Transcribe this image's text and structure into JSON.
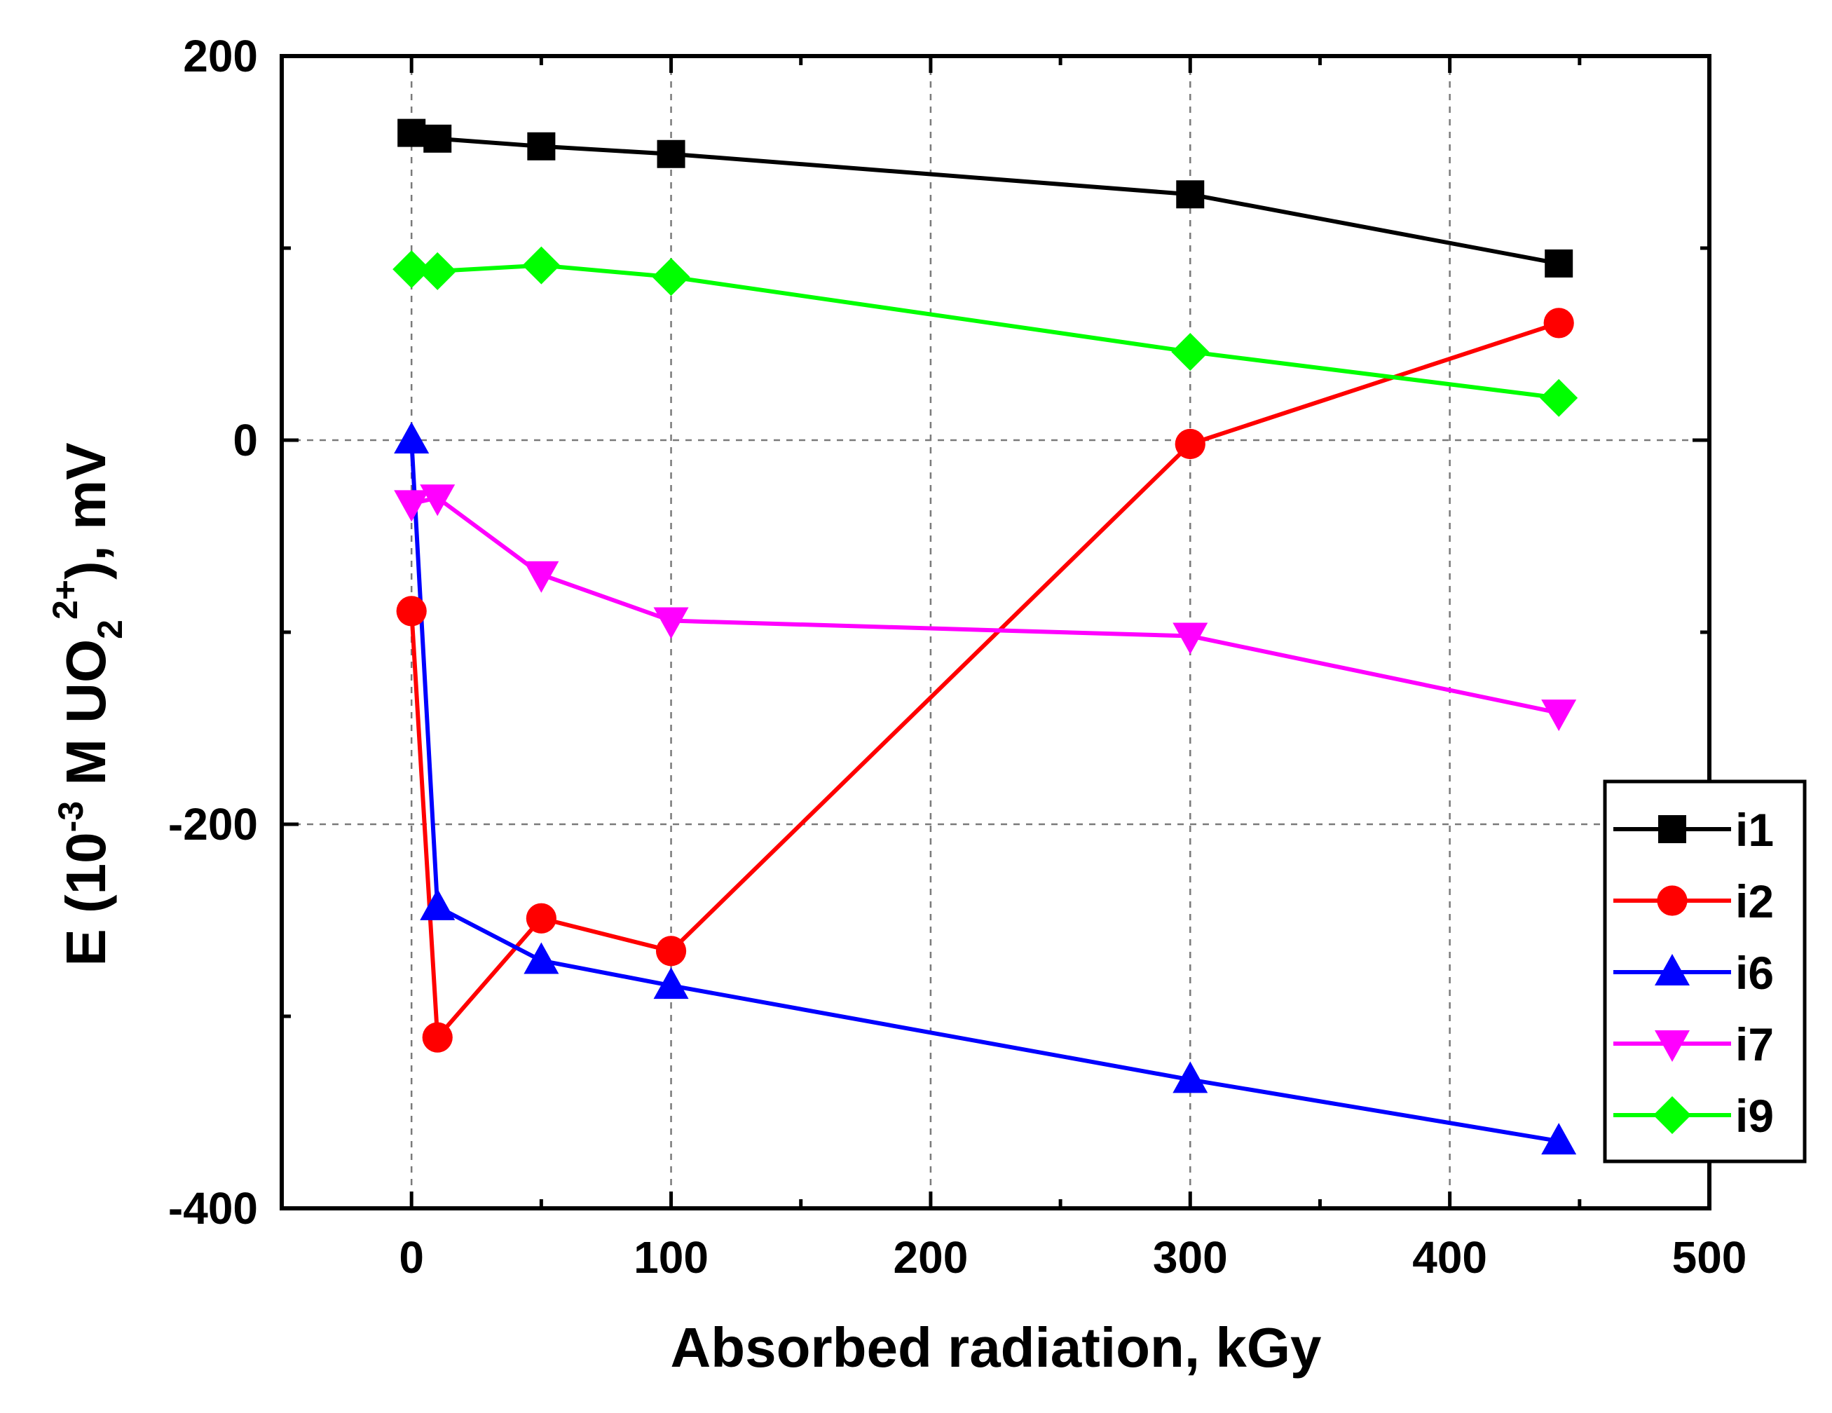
{
  "chart_data": {
    "type": "line",
    "title": "",
    "xlabel": "Absorbed radiation, kGy",
    "ylabel": {
      "main": "E (10",
      "exp": "-3",
      "species": " M UO",
      "sub": "2",
      "charge": "2+",
      "tail": "), mV"
    },
    "xlim": [
      -50,
      500
    ],
    "ylim": [
      -400,
      200
    ],
    "x_ticks": [
      0,
      100,
      200,
      300,
      400,
      500
    ],
    "y_ticks": [
      -400,
      -200,
      0,
      200
    ],
    "x_minor_step": 50,
    "y_minor_step": 100,
    "grid": true,
    "legend_position": "bottom-right",
    "series": [
      {
        "name": "i1",
        "color": "#000000",
        "marker": "square",
        "x": [
          0,
          10,
          50,
          100,
          300,
          442
        ],
        "y": [
          160,
          157,
          153,
          149,
          128,
          92
        ]
      },
      {
        "name": "i2",
        "color": "#ff0000",
        "marker": "circle",
        "x": [
          0,
          10,
          50,
          100,
          300,
          442
        ],
        "y": [
          -89,
          -311,
          -249,
          -266,
          -2,
          61
        ]
      },
      {
        "name": "i6",
        "color": "#0000ff",
        "marker": "triangle-up",
        "x": [
          0,
          10,
          50,
          100,
          300,
          442
        ],
        "y": [
          0,
          -243,
          -271,
          -284,
          -333,
          -365
        ]
      },
      {
        "name": "i7",
        "color": "#ff00ff",
        "marker": "triangle-down",
        "x": [
          0,
          10,
          50,
          100,
          300,
          442
        ],
        "y": [
          -33,
          -30,
          -70,
          -94,
          -102,
          -142
        ]
      },
      {
        "name": "i9",
        "color": "#00ff00",
        "marker": "diamond",
        "x": [
          0,
          10,
          50,
          100,
          300,
          442
        ],
        "y": [
          89,
          88,
          91,
          85,
          46,
          22
        ]
      }
    ]
  }
}
